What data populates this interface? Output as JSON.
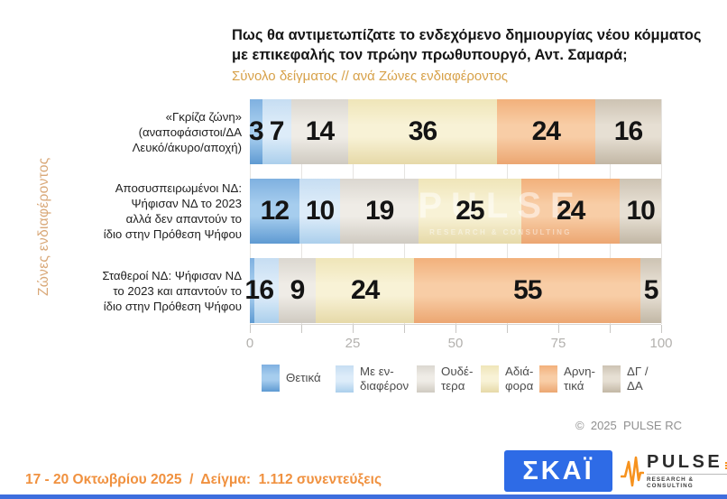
{
  "title_lines": [
    "Πως θα αντιμετωπίζατε το ενδεχόμενο δημιουργίας νέου κόμματος",
    "με επικεφαλής τον πρώην πρωθυπουργό, Αντ. Σαμαρά;"
  ],
  "subtitle": "Σύνολο δείγματος // ανά Ζώνες ενδιαφέροντος",
  "side_label": "Ζώνες ενδιαφέροντος",
  "chart_data": {
    "type": "bar",
    "orientation": "horizontal",
    "stacked": true,
    "xlim": [
      0,
      100
    ],
    "x_ticks": [
      0,
      25,
      50,
      75,
      100
    ],
    "minor_tick_step": 12.5,
    "grid": true,
    "legend_position": "bottom",
    "categories": [
      "«Γκρίζα ζώνη» (αναποφάσιστοι/ΔΑ Λευκό/άκυρο/αποχή)",
      "Αποσυσπειρωμένοι ΝΔ: Ψήφισαν ΝΔ το 2023 αλλά δεν απαντούν το ίδιο στην Πρόθεση Ψήφου",
      "Σταθεροί ΝΔ: Ψήφισαν ΝΔ το 2023 και απαντούν το ίδιο στην Πρόθεση Ψήφου"
    ],
    "category_label_lines": [
      [
        "«Γκρίζα ζώνη»",
        "(αναποφάσιστοι/ΔΑ",
        "Λευκό/άκυρο/αποχή)"
      ],
      [
        "Αποσυσπειρωμένοι ΝΔ:",
        "Ψήφισαν ΝΔ το 2023",
        "αλλά δεν απαντούν το",
        "ίδιο στην Πρόθεση Ψήφου"
      ],
      [
        "Σταθεροί ΝΔ: Ψήφισαν ΝΔ",
        "το 2023 και απαντούν το",
        "ίδιο στην Πρόθεση Ψήφου"
      ]
    ],
    "series": [
      {
        "name": "Θετικά",
        "values": [
          3,
          12,
          1
        ],
        "color_top": "#7fb0e0",
        "color_mid": "#a6cdee",
        "color_bottom": "#5e9ad2"
      },
      {
        "name": "Με ενδιαφέρον",
        "values": [
          7,
          10,
          6
        ],
        "color_top": "#c6ddf2",
        "color_mid": "#ddecf9",
        "color_bottom": "#abcfec"
      },
      {
        "name": "Ουδέτερα",
        "values": [
          14,
          19,
          9
        ],
        "color_top": "#dbd7d0",
        "color_mid": "#efece6",
        "color_bottom": "#cfcac1"
      },
      {
        "name": "Αδιάφορα",
        "values": [
          36,
          25,
          24
        ],
        "color_top": "#efe5b8",
        "color_mid": "#f8f2d6",
        "color_bottom": "#e6d9a8"
      },
      {
        "name": "Αρνητικά",
        "values": [
          24,
          24,
          55
        ],
        "color_top": "#f2b07b",
        "color_mid": "#f8cda6",
        "color_bottom": "#eca671"
      },
      {
        "name": "ΔΓ / ΔΑ",
        "values": [
          16,
          10,
          5
        ],
        "color_top": "#cdc3b3",
        "color_mid": "#e6dfd3",
        "color_bottom": "#c2b7a5"
      }
    ]
  },
  "legend": {
    "items": [
      {
        "label_lines": [
          "Θετικά"
        ]
      },
      {
        "label_lines": [
          "Με εν-",
          "διαφέρον"
        ]
      },
      {
        "label_lines": [
          "Ουδέ-",
          "τερα"
        ]
      },
      {
        "label_lines": [
          "Αδιά-",
          "φορα"
        ]
      },
      {
        "label_lines": [
          "Αρνη-",
          "τικά"
        ]
      },
      {
        "label_lines": [
          "ΔΓ /",
          "ΔΑ"
        ]
      }
    ]
  },
  "watermark": {
    "line1": "PULSE",
    "line2": "RESEARCH & CONSULTING"
  },
  "copyright": "©  2025  PULSE RC",
  "footer": {
    "date_sample": "17 - 20 Οκτωβρίου 2025  /  Δείγμα:  1.112 συνεντεύξεις"
  },
  "logos": {
    "skai_text": "ΣΚΑΪ",
    "pulse_text": "PULSE",
    "pulse_subtext": "RESEARCH & CONSULTING"
  }
}
